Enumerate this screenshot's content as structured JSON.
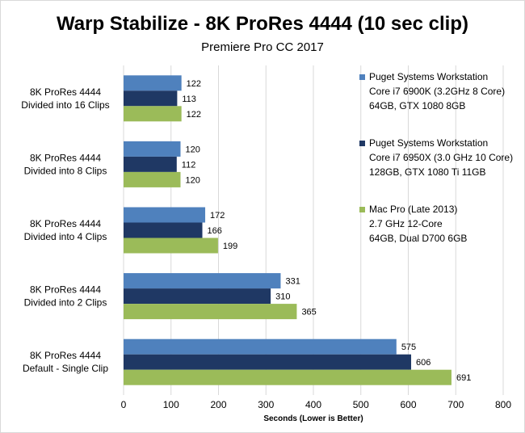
{
  "chart_data": {
    "type": "bar",
    "orientation": "horizontal",
    "title": "Warp Stabilize - 8K ProRes 4444 (10 sec clip)",
    "subtitle": "Premiere Pro CC 2017",
    "xlabel": "Seconds  (Lower is Better)",
    "ylabel": "",
    "xlim": [
      0,
      800
    ],
    "xticks": [
      0,
      100,
      200,
      300,
      400,
      500,
      600,
      700,
      800
    ],
    "grid": true,
    "legend_position": "right",
    "categories": [
      [
        "8K ProRes 4444",
        "Divided into 16 Clips"
      ],
      [
        "8K ProRes 4444",
        "Divided into 8 Clips"
      ],
      [
        "8K ProRes 4444",
        "Divided into 4 Clips"
      ],
      [
        "8K ProRes 4444",
        "Divided into 2 Clips"
      ],
      [
        "8K ProRes 4444",
        "Default - Single Clip"
      ]
    ],
    "series": [
      {
        "name": [
          "Puget Systems Workstation",
          "Core i7 6900K (3.2GHz 8 Core)",
          "64GB, GTX 1080 8GB"
        ],
        "color": "#4f81bd",
        "values": [
          122,
          120,
          172,
          331,
          575
        ]
      },
      {
        "name": [
          "Puget Systems Workstation",
          "Core i7 6950X (3.0 GHz 10 Core)",
          "128GB, GTX 1080 Ti 11GB"
        ],
        "color": "#1f3864",
        "values": [
          113,
          112,
          166,
          310,
          606
        ]
      },
      {
        "name": [
          "Mac Pro (Late 2013)",
          "2.7 GHz 12-Core",
          "64GB, Dual D700 6GB"
        ],
        "color": "#9bbb59",
        "values": [
          122,
          120,
          199,
          365,
          691
        ]
      }
    ]
  }
}
